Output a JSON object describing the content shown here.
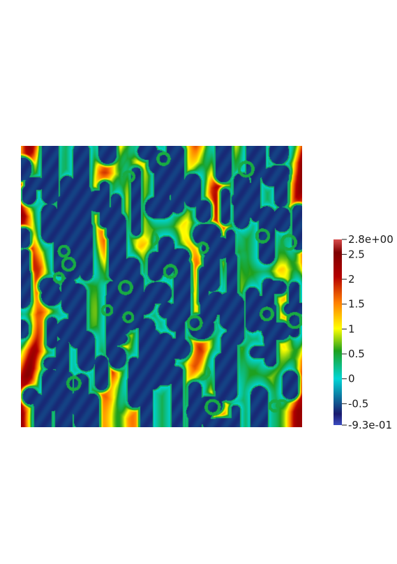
{
  "chart_data": {
    "type": "heatmap",
    "title": "",
    "xlabel": "",
    "ylabel": "",
    "colorbar": {
      "min": -0.93,
      "max": 2.8,
      "min_label": "-9.3e-01",
      "max_label": "2.8e+00",
      "ticks": [
        {
          "value": 2.5,
          "label": "2.5"
        },
        {
          "value": 2.0,
          "label": "2"
        },
        {
          "value": 1.5,
          "label": "1.5"
        },
        {
          "value": 1.0,
          "label": "1"
        },
        {
          "value": 0.5,
          "label": "0.5"
        },
        {
          "value": 0.0,
          "label": "0"
        },
        {
          "value": -0.5,
          "label": "-0.5"
        }
      ],
      "colormap": [
        "#3b4cc0",
        "#1a1a6e",
        "#00d5d5",
        "#1ea01e",
        "#ffff00",
        "#ff7f00",
        "#b40000",
        "#7f0000",
        "#d84c4c"
      ]
    }
  }
}
